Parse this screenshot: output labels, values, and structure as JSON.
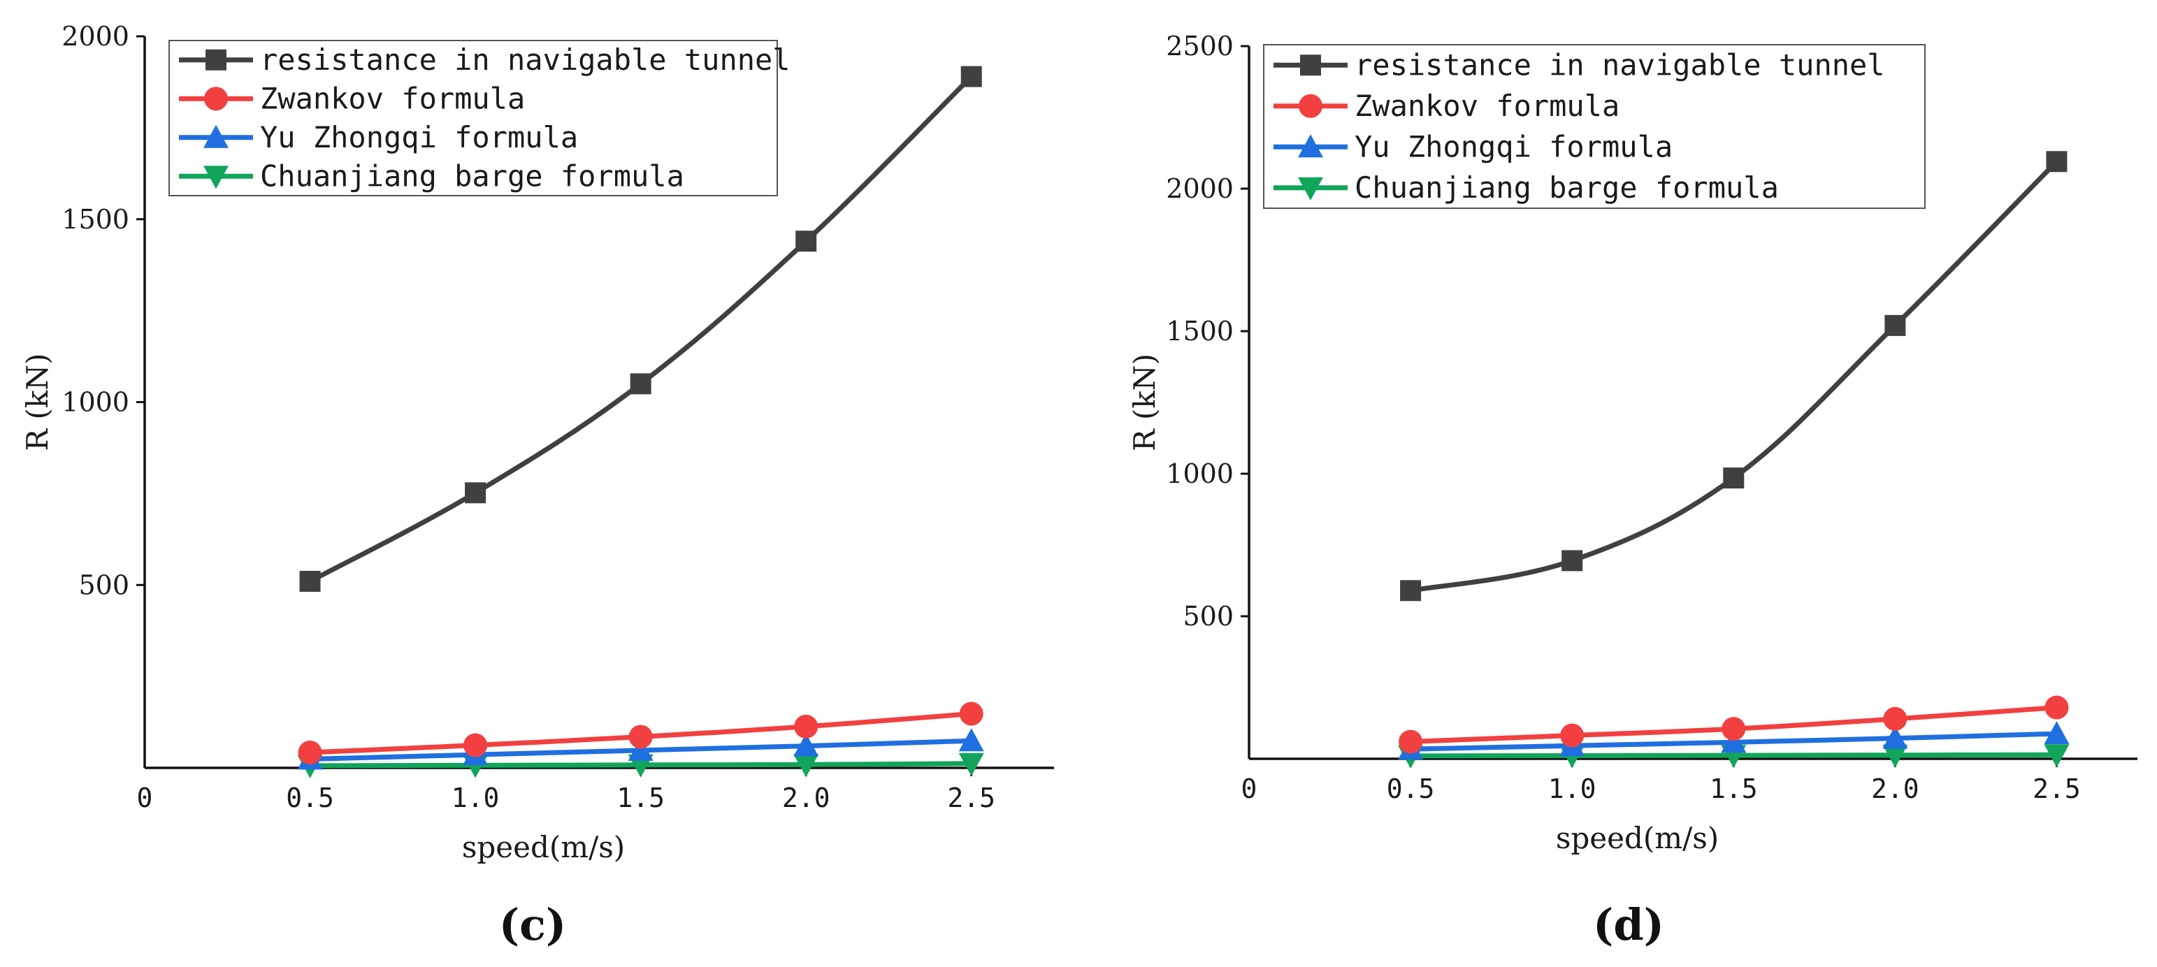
{
  "chart_data": [
    {
      "type": "line",
      "panel_label": "(c)",
      "xlabel": "speed(m/s)",
      "ylabel": "R (kN)",
      "x": [
        0.5,
        1.0,
        1.5,
        2.0,
        2.5
      ],
      "xlim": [
        0,
        2.75
      ],
      "ylim": [
        0,
        2000
      ],
      "origin_label": "0",
      "xticks": [
        0.5,
        1.0,
        1.5,
        2.0,
        2.5
      ],
      "xtick_labels": [
        "0.5",
        "1.0",
        "1.5",
        "2.0",
        "2.5"
      ],
      "yticks": [
        500,
        1000,
        1500,
        2000
      ],
      "ytick_labels": [
        "500",
        "1000",
        "1500",
        "2000"
      ],
      "legend_position": "top-left",
      "series": [
        {
          "name": "resistance in navigable tunnel",
          "color": "#404040",
          "marker": "square",
          "values": [
            510,
            752,
            1050,
            1440,
            1890
          ]
        },
        {
          "name": "Zwankov formula",
          "color": "#f24040",
          "marker": "circle",
          "values": [
            42,
            62,
            85,
            113,
            148
          ]
        },
        {
          "name": "Yu Zhongqi formula",
          "color": "#1f6fe0",
          "marker": "triangle-up",
          "values": [
            24,
            36,
            48,
            60,
            74
          ]
        },
        {
          "name": "Chuanjiang barge formula",
          "color": "#10a55a",
          "marker": "triangle-down",
          "values": [
            6,
            7,
            8,
            9,
            12
          ]
        }
      ]
    },
    {
      "type": "line",
      "panel_label": "(d)",
      "xlabel": "speed(m/s)",
      "ylabel": "R (kN)",
      "x": [
        0.5,
        1.0,
        1.5,
        2.0,
        2.5
      ],
      "xlim": [
        0,
        2.75
      ],
      "ylim": [
        0,
        2500
      ],
      "origin_label": "0",
      "xticks": [
        0.5,
        1.0,
        1.5,
        2.0,
        2.5
      ],
      "xtick_labels": [
        "0.5",
        "1.0",
        "1.5",
        "2.0",
        "2.5"
      ],
      "yticks": [
        500,
        1000,
        1500,
        2000,
        2500
      ],
      "ytick_labels": [
        "500",
        "1000",
        "1500",
        "2000",
        "2500"
      ],
      "legend_position": "top-left",
      "series": [
        {
          "name": "resistance in navigable tunnel",
          "color": "#404040",
          "marker": "square",
          "values": [
            590,
            695,
            985,
            1520,
            2095
          ]
        },
        {
          "name": "Zwankov formula",
          "color": "#f24040",
          "marker": "circle",
          "values": [
            60,
            82,
            105,
            140,
            180
          ]
        },
        {
          "name": "Yu Zhongqi formula",
          "color": "#1f6fe0",
          "marker": "triangle-up",
          "values": [
            34,
            46,
            58,
            72,
            88
          ]
        },
        {
          "name": "Chuanjiang barge formula",
          "color": "#10a55a",
          "marker": "triangle-down",
          "values": [
            10,
            11,
            12,
            13,
            14
          ]
        }
      ]
    }
  ]
}
